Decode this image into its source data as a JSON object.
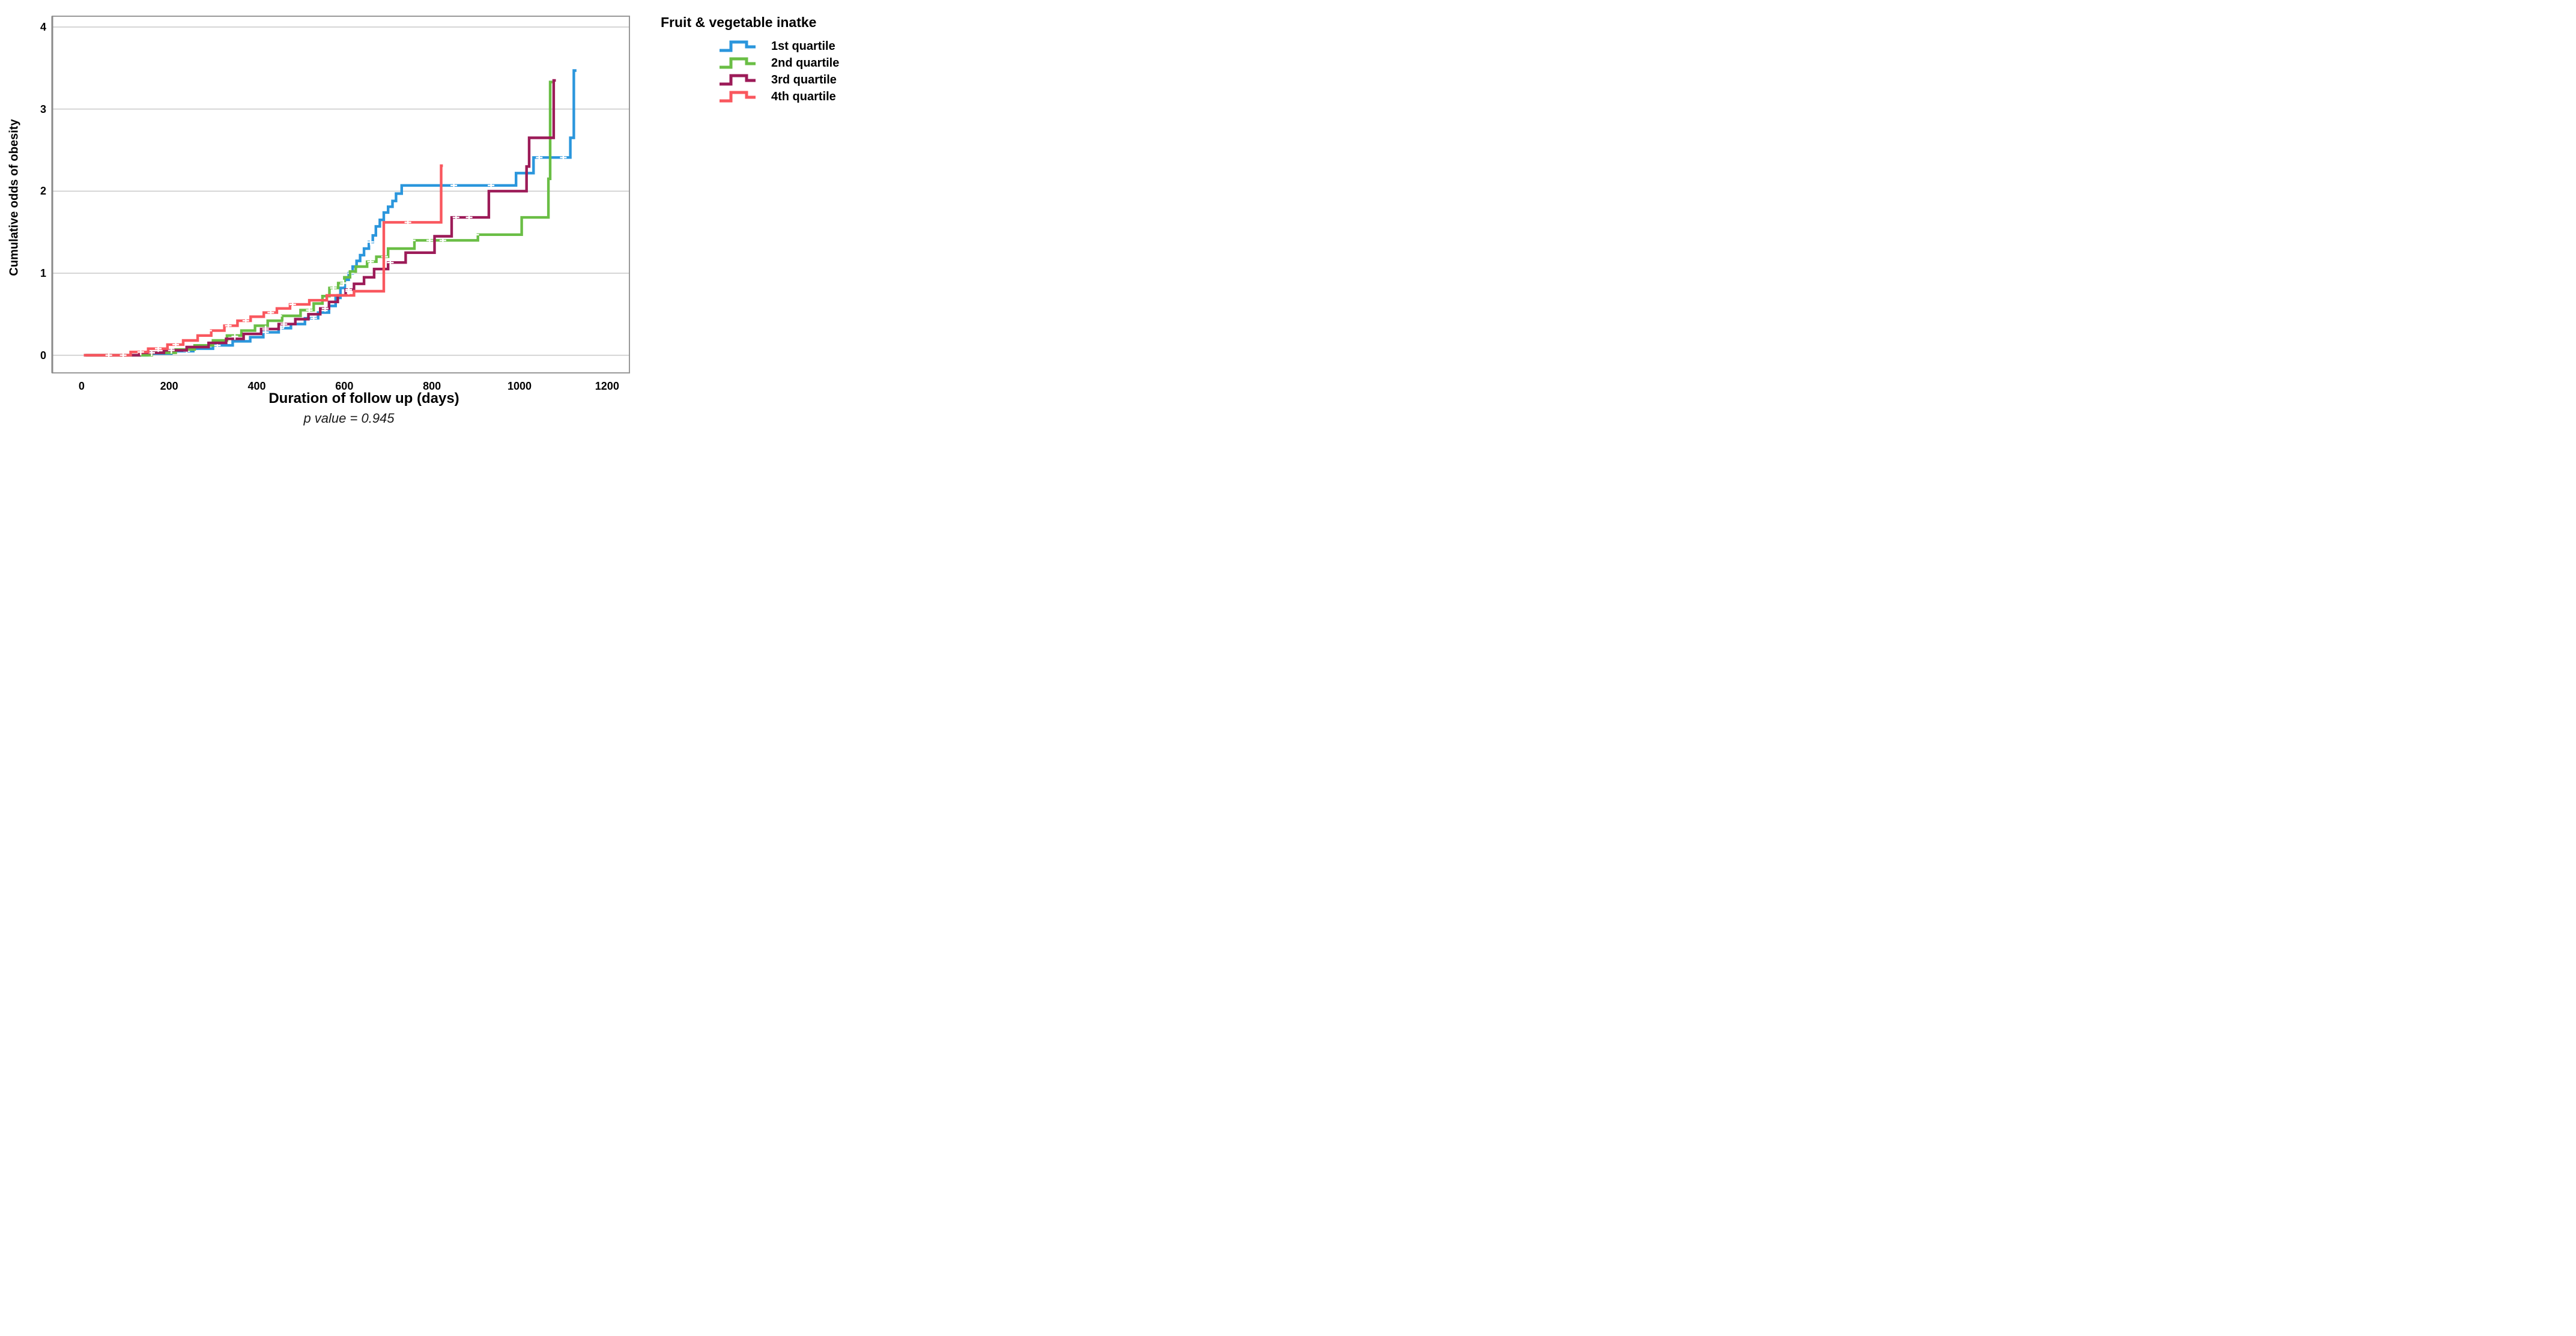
{
  "chart_data": {
    "type": "line",
    "subtype": "step-function cumulative odds (survival-analysis style) with censoring marks",
    "title": "",
    "xlabel": "Duration of follow up (days)",
    "ylabel": "Cumulative odds of obesity",
    "caption": "p value = 0.945",
    "x_ticks": [
      "0",
      "200",
      "400",
      "600",
      "800",
      "1000",
      "1200"
    ],
    "y_ticks": [
      "4",
      "3",
      "2",
      "1",
      "0"
    ],
    "x_tick_values": [
      0,
      200,
      400,
      600,
      800,
      1000,
      1200
    ],
    "y_tick_values": [
      4,
      3,
      2,
      1,
      0
    ],
    "x_domain": [
      -67,
      1251
    ],
    "y_domain": [
      -0.215,
      4.132
    ],
    "grid": "horizontal gridlines at each integer y value",
    "legend_position": "outside top-right",
    "frame_color": "#999999",
    "axis_line_color": "#8a8a8a",
    "grid_color": "#c9c9c9",
    "censor_mark_color": "#ffffff",
    "series": [
      {
        "name": "1st quartile",
        "color": "#2b96dc",
        "end_day": 1130,
        "steps": [
          [
            5,
            0
          ],
          [
            150,
            0.02
          ],
          [
            205,
            0.05
          ],
          [
            255,
            0.08
          ],
          [
            300,
            0.12
          ],
          [
            345,
            0.17
          ],
          [
            385,
            0.22
          ],
          [
            415,
            0.28
          ],
          [
            450,
            0.33
          ],
          [
            478,
            0.38
          ],
          [
            510,
            0.45
          ],
          [
            540,
            0.52
          ],
          [
            565,
            0.6
          ],
          [
            580,
            0.7
          ],
          [
            591,
            0.82
          ],
          [
            601,
            0.92
          ],
          [
            610,
            1.0
          ],
          [
            619,
            1.08
          ],
          [
            628,
            1.15
          ],
          [
            636,
            1.22
          ],
          [
            645,
            1.3
          ],
          [
            656,
            1.38
          ],
          [
            665,
            1.46
          ],
          [
            672,
            1.57
          ],
          [
            681,
            1.65
          ],
          [
            690,
            1.74
          ],
          [
            700,
            1.81
          ],
          [
            710,
            1.88
          ],
          [
            718,
            1.97
          ],
          [
            731,
            2.07
          ],
          [
            992,
            2.22
          ],
          [
            1032,
            2.41
          ],
          [
            1116,
            2.65
          ],
          [
            1124,
            3.47
          ]
        ],
        "censors": [
          [
            240,
            0.05
          ],
          [
            310,
            0.12
          ],
          [
            420,
            0.28
          ],
          [
            455,
            0.33
          ],
          [
            530,
            0.45
          ],
          [
            615,
            1.0
          ],
          [
            660,
            1.38
          ],
          [
            850,
            2.07
          ],
          [
            935,
            2.07
          ],
          [
            1045,
            2.41
          ],
          [
            1100,
            2.41
          ]
        ]
      },
      {
        "name": "2nd quartile",
        "color": "#6abe45",
        "end_day": 1075,
        "steps": [
          [
            8,
            0
          ],
          [
            160,
            0.03
          ],
          [
            215,
            0.07
          ],
          [
            258,
            0.12
          ],
          [
            300,
            0.18
          ],
          [
            332,
            0.24
          ],
          [
            365,
            0.3
          ],
          [
            396,
            0.36
          ],
          [
            425,
            0.42
          ],
          [
            458,
            0.48
          ],
          [
            500,
            0.55
          ],
          [
            530,
            0.63
          ],
          [
            550,
            0.72
          ],
          [
            566,
            0.82
          ],
          [
            586,
            0.88
          ],
          [
            600,
            0.95
          ],
          [
            613,
            1.02
          ],
          [
            626,
            1.08
          ],
          [
            652,
            1.14
          ],
          [
            673,
            1.2
          ],
          [
            700,
            1.3
          ],
          [
            760,
            1.4
          ],
          [
            905,
            1.47
          ],
          [
            1005,
            1.68
          ],
          [
            1066,
            2.15
          ],
          [
            1070,
            3.33
          ]
        ],
        "censors": [
          [
            450,
            0.48
          ],
          [
            520,
            0.55
          ],
          [
            575,
            0.82
          ],
          [
            598,
            0.88
          ],
          [
            660,
            1.14
          ],
          [
            692,
            1.2
          ],
          [
            755,
            1.4
          ],
          [
            795,
            1.4
          ],
          [
            825,
            1.4
          ],
          [
            862,
            1.47
          ],
          [
            900,
            1.47
          ]
        ]
      },
      {
        "name": "3rd quartile",
        "color": "#9c1b58",
        "end_day": 1083,
        "steps": [
          [
            10,
            0
          ],
          [
            132,
            0.03
          ],
          [
            188,
            0.06
          ],
          [
            240,
            0.1
          ],
          [
            290,
            0.15
          ],
          [
            330,
            0.2
          ],
          [
            370,
            0.26
          ],
          [
            410,
            0.32
          ],
          [
            450,
            0.38
          ],
          [
            488,
            0.44
          ],
          [
            518,
            0.5
          ],
          [
            545,
            0.57
          ],
          [
            565,
            0.65
          ],
          [
            585,
            0.73
          ],
          [
            603,
            0.8
          ],
          [
            622,
            0.87
          ],
          [
            645,
            0.95
          ],
          [
            668,
            1.05
          ],
          [
            700,
            1.13
          ],
          [
            740,
            1.25
          ],
          [
            806,
            1.45
          ],
          [
            845,
            1.68
          ],
          [
            930,
            2.0
          ],
          [
            1016,
            2.3
          ],
          [
            1022,
            2.65
          ],
          [
            1078,
            3.35
          ]
        ],
        "censors": [
          [
            160,
            0.03
          ],
          [
            205,
            0.06
          ],
          [
            350,
            0.23
          ],
          [
            420,
            0.32
          ],
          [
            462,
            0.38
          ],
          [
            556,
            0.57
          ],
          [
            610,
            0.8
          ],
          [
            705,
            1.13
          ],
          [
            855,
            1.68
          ],
          [
            885,
            1.68
          ]
        ]
      },
      {
        "name": "4th quartile",
        "color": "#f9575e",
        "end_day": 825,
        "steps": [
          [
            5,
            0
          ],
          [
            112,
            0.04
          ],
          [
            152,
            0.08
          ],
          [
            196,
            0.13
          ],
          [
            232,
            0.18
          ],
          [
            265,
            0.24
          ],
          [
            296,
            0.3
          ],
          [
            326,
            0.36
          ],
          [
            356,
            0.42
          ],
          [
            386,
            0.47
          ],
          [
            416,
            0.52
          ],
          [
            446,
            0.57
          ],
          [
            476,
            0.62
          ],
          [
            520,
            0.67
          ],
          [
            560,
            0.73
          ],
          [
            622,
            0.78
          ],
          [
            690,
            1.62
          ],
          [
            821,
            2.31
          ]
        ],
        "censors": [
          [
            62,
            0
          ],
          [
            95,
            0
          ],
          [
            135,
            0.04
          ],
          [
            175,
            0.08
          ],
          [
            215,
            0.13
          ],
          [
            290,
            0.3
          ],
          [
            335,
            0.36
          ],
          [
            375,
            0.42
          ],
          [
            432,
            0.52
          ],
          [
            482,
            0.62
          ],
          [
            610,
            0.78
          ],
          [
            745,
            1.62
          ]
        ]
      }
    ]
  },
  "legend": {
    "title": "Fruit & vegetable inatke"
  }
}
